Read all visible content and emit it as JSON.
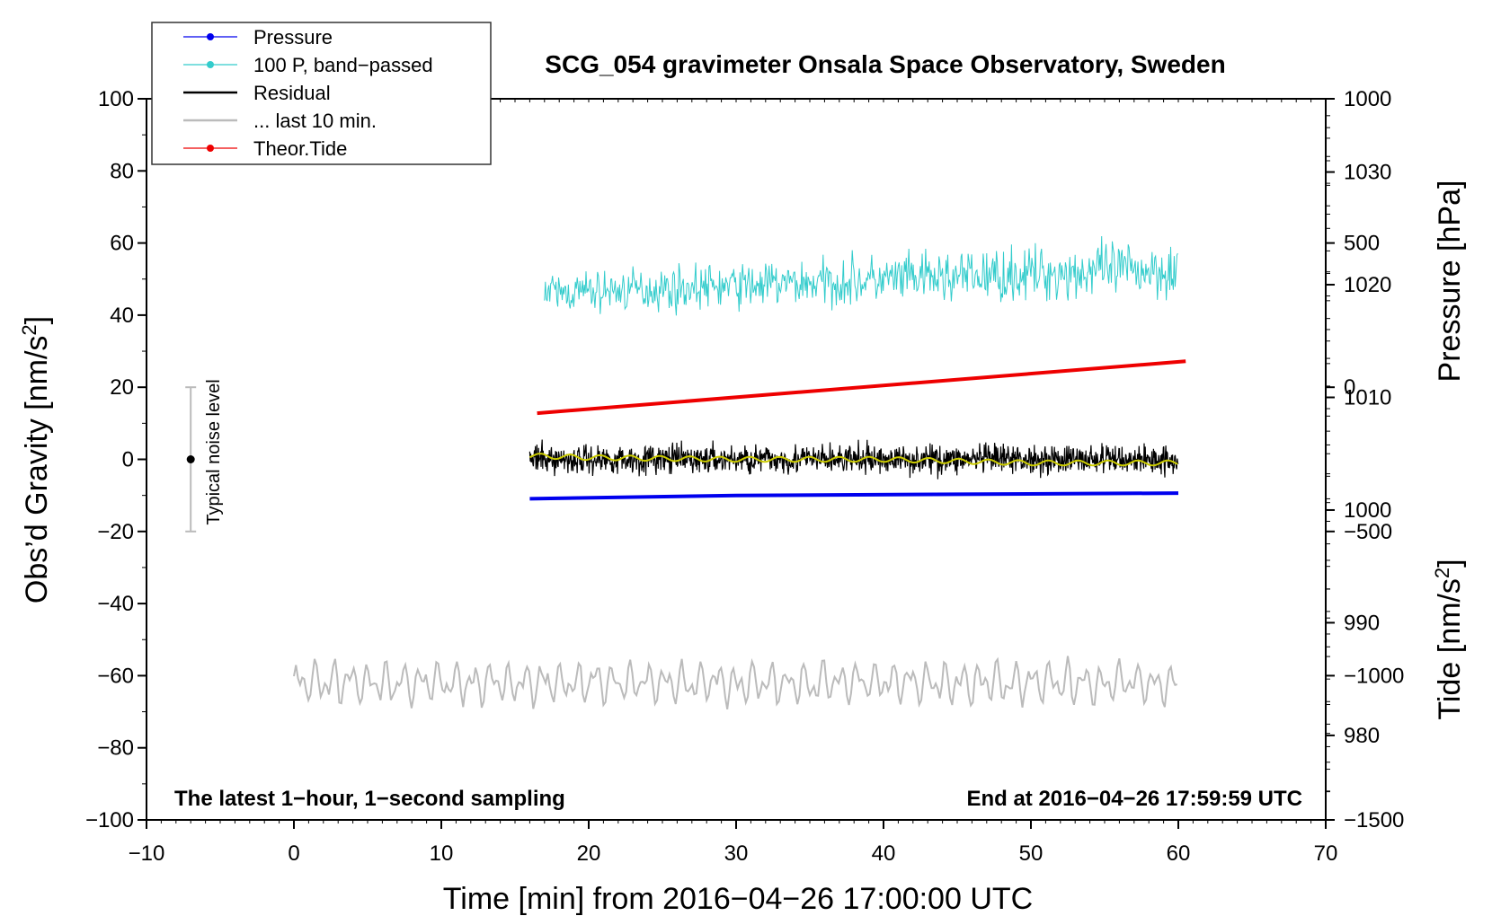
{
  "chart_data": {
    "type": "line",
    "title": "SCG_054 gravimeter Onsala Space Observatory, Sweden",
    "xlabel": "Time [min] from 2016−04−26 17:00:00 UTC",
    "ylabel_left": "Obs’d Gravity [nm/s²]",
    "ylabel_right_top": "Pressure [hPa]",
    "ylabel_right_bottom": "Tide [nm/s²]",
    "xlim": [
      -10,
      70
    ],
    "ylim": [
      -100,
      100
    ],
    "pressure_lim": [
      972.5,
      1036.5
    ],
    "tide_lim": [
      -1500,
      1000
    ],
    "x_ticks": [
      "−10",
      "0",
      "10",
      "20",
      "30",
      "40",
      "50",
      "60",
      "70"
    ],
    "y_ticks": [
      "−100",
      "−80",
      "−60",
      "−40",
      "−20",
      "0",
      "20",
      "40",
      "60",
      "80",
      "100"
    ],
    "pressure_ticks": [
      "980",
      "990",
      "1000",
      "1010",
      "1020",
      "1030"
    ],
    "tide_ticks": [
      "−1500",
      "−1000",
      "−500",
      "0",
      "500",
      "1000"
    ],
    "grid": false,
    "legend_position": "top-left",
    "legend": [
      {
        "label": "Pressure",
        "color": "#0000ee",
        "marker": true
      },
      {
        "label": "100 P, band−passed",
        "color": "#33cccc",
        "marker": true
      },
      {
        "label": "Residual",
        "color": "#000000",
        "marker": false
      },
      {
        "label": "... last 10 min.",
        "color": "#bbbbbb",
        "marker": false
      },
      {
        "label": "Theor.Tide",
        "color": "#ee0000",
        "marker": true
      }
    ],
    "annotations": {
      "noise_label": "Typical noise level",
      "bottom_left": "The latest 1−hour, 1−second sampling",
      "bottom_right": "End at 2016−04−26 17:59:59 UTC"
    },
    "noise_bar": {
      "x": -7,
      "center": 0,
      "half_range": 20
    },
    "series": [
      {
        "name": "Pressure",
        "color": "#0000ee",
        "unit": "hPa",
        "x": [
          16,
          30,
          45,
          60
        ],
        "values": [
          1001.0,
          1001.3,
          1001.4,
          1001.5
        ]
      },
      {
        "name": "100 P, band−passed",
        "color": "#33cccc",
        "unit": "nm/s²",
        "x_range": [
          17,
          60
        ],
        "baseline": [
          46,
          53
        ],
        "amplitude": [
          8,
          12
        ]
      },
      {
        "name": "Residual",
        "color": "#000000",
        "unit": "nm/s²",
        "x_range": [
          16,
          60
        ],
        "baseline": [
          0,
          0
        ],
        "amplitude": [
          6,
          6
        ]
      },
      {
        "name": "Residual (smoothed)",
        "color": "#cccc00",
        "unit": "nm/s²",
        "x": [
          16,
          20,
          30,
          40,
          50,
          60
        ],
        "values": [
          1,
          0.5,
          0,
          0,
          -1,
          -1
        ]
      },
      {
        "name": "... last 10 min.",
        "color": "#bbbbbb",
        "unit": "nm/s²",
        "x_range": [
          0,
          60
        ],
        "baseline": [
          -62,
          -62
        ],
        "amplitude": [
          6,
          6
        ]
      },
      {
        "name": "Theor.Tide",
        "color": "#ee0000",
        "unit": "nm/s²",
        "x": [
          16.5,
          60.5
        ],
        "values": [
          -90,
          90
        ]
      }
    ]
  }
}
